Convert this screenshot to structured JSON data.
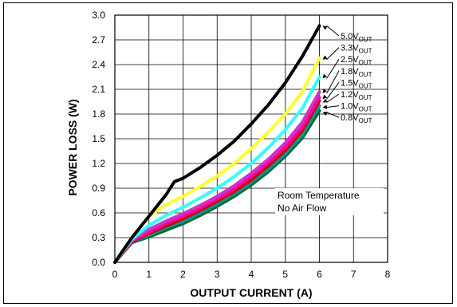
{
  "chart_data": {
    "type": "line",
    "title": "",
    "xlabel": "OUTPUT CURRENT (A)",
    "ylabel": "POWER LOSS (W)",
    "xlim": [
      0,
      8
    ],
    "ylim": [
      0,
      3.0
    ],
    "xticks": [
      "0",
      "1",
      "2",
      "3",
      "4",
      "5",
      "6",
      "7",
      "8"
    ],
    "yticks": [
      "0.0",
      "0.3",
      "0.6",
      "0.9",
      "1.2",
      "1.5",
      "1.8",
      "2.1",
      "2.4",
      "2.7",
      "3.0"
    ],
    "grid": true,
    "annotations": [
      "Room Temperature",
      "No Air Flow"
    ],
    "series": [
      {
        "name": "5.0V",
        "sub": "OUT",
        "color": "#000000",
        "x": [
          0,
          0.5,
          1,
          1.5,
          1.75,
          2,
          2.5,
          3,
          3.5,
          4,
          4.5,
          5,
          5.5,
          6
        ],
        "y": [
          0,
          0.3,
          0.56,
          0.82,
          0.98,
          1.02,
          1.15,
          1.3,
          1.47,
          1.68,
          1.91,
          2.18,
          2.5,
          2.87
        ]
      },
      {
        "name": "3.3V",
        "sub": "OUT",
        "color": "#ffff33",
        "x": [
          0,
          0.5,
          1,
          1.5,
          2,
          2.5,
          3,
          3.5,
          4,
          4.5,
          5,
          5.5,
          6
        ],
        "y": [
          0,
          0.3,
          0.56,
          0.7,
          0.8,
          0.92,
          1.05,
          1.2,
          1.38,
          1.58,
          1.8,
          2.07,
          2.48
        ]
      },
      {
        "name": "2.5V",
        "sub": "OUT",
        "color": "#33ffff",
        "x": [
          0,
          0.5,
          1,
          1.5,
          2,
          2.5,
          3,
          3.5,
          4,
          4.5,
          5,
          5.5,
          6
        ],
        "y": [
          0,
          0.28,
          0.45,
          0.57,
          0.67,
          0.78,
          0.9,
          1.04,
          1.2,
          1.39,
          1.61,
          1.87,
          2.25
        ]
      },
      {
        "name": "1.8V",
        "sub": "OUT",
        "color": "#cc33cc",
        "x": [
          0,
          0.5,
          1,
          1.5,
          2,
          2.5,
          3,
          3.5,
          4,
          4.5,
          5,
          5.5,
          6
        ],
        "y": [
          0,
          0.27,
          0.4,
          0.5,
          0.59,
          0.69,
          0.8,
          0.93,
          1.08,
          1.25,
          1.45,
          1.7,
          2.07
        ]
      },
      {
        "name": "1.5V",
        "sub": "OUT",
        "color": "#ff0099",
        "x": [
          0,
          0.5,
          1,
          1.5,
          2,
          2.5,
          3,
          3.5,
          4,
          4.5,
          5,
          5.5,
          6
        ],
        "y": [
          0,
          0.26,
          0.37,
          0.47,
          0.56,
          0.66,
          0.77,
          0.89,
          1.04,
          1.21,
          1.4,
          1.64,
          2.0
        ]
      },
      {
        "name": "1.2V",
        "sub": "OUT",
        "color": "#cc0000",
        "x": [
          0,
          0.5,
          1,
          1.5,
          2,
          2.5,
          3,
          3.5,
          4,
          4.5,
          5,
          5.5,
          6
        ],
        "y": [
          0,
          0.25,
          0.35,
          0.44,
          0.53,
          0.63,
          0.74,
          0.86,
          1.0,
          1.17,
          1.36,
          1.6,
          1.96
        ]
      },
      {
        "name": "1.0V",
        "sub": "OUT",
        "color": "#009999",
        "x": [
          0,
          0.5,
          1,
          1.5,
          2,
          2.5,
          3,
          3.5,
          4,
          4.5,
          5,
          5.5,
          6
        ],
        "y": [
          0,
          0.25,
          0.33,
          0.42,
          0.5,
          0.6,
          0.71,
          0.83,
          0.97,
          1.13,
          1.32,
          1.55,
          1.9
        ]
      },
      {
        "name": "0.8V",
        "sub": "OUT",
        "color": "#006633",
        "x": [
          0,
          0.5,
          1,
          1.5,
          2,
          2.5,
          3,
          3.5,
          4,
          4.5,
          5,
          5.5,
          6
        ],
        "y": [
          0,
          0.24,
          0.31,
          0.39,
          0.47,
          0.57,
          0.68,
          0.8,
          0.94,
          1.1,
          1.29,
          1.51,
          1.84
        ]
      }
    ]
  }
}
